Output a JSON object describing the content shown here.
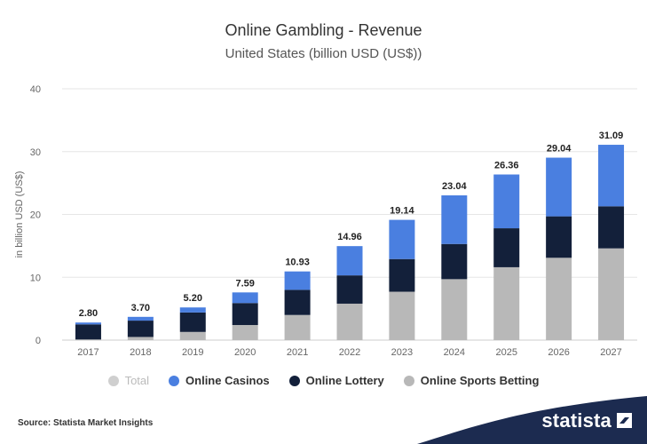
{
  "title": "Online Gambling - Revenue",
  "subtitle": "United States (billion USD (US$))",
  "source": "Source: Statista Market Insights",
  "brand": "statista",
  "colors": {
    "casinos": "#4a7fe0",
    "lottery": "#13203a",
    "sports": "#b8b8b8",
    "total": "#cfcfcf"
  },
  "legend": [
    {
      "label": "Total",
      "color": "#cfcfcf",
      "dim": true
    },
    {
      "label": "Online Casinos",
      "color": "#4a7fe0",
      "dim": false
    },
    {
      "label": "Online Lottery",
      "color": "#13203a",
      "dim": false
    },
    {
      "label": "Online Sports Betting",
      "color": "#b8b8b8",
      "dim": false
    }
  ],
  "chart_data": {
    "type": "bar",
    "stacked": true,
    "ylabel": "in billion USD (US$)",
    "ylim": [
      0,
      40
    ],
    "yticks": [
      0,
      10,
      20,
      30,
      40
    ],
    "grid": true,
    "legend_position": "bottom",
    "categories": [
      "2017",
      "2018",
      "2019",
      "2020",
      "2021",
      "2022",
      "2023",
      "2024",
      "2025",
      "2026",
      "2027"
    ],
    "totals": [
      "2.80",
      "3.70",
      "5.20",
      "7.59",
      "10.93",
      "14.96",
      "19.14",
      "23.04",
      "26.36",
      "29.04",
      "31.09"
    ],
    "series": [
      {
        "name": "Online Sports Betting",
        "color": "#b8b8b8",
        "values": [
          0.1,
          0.5,
          1.3,
          2.4,
          4.0,
          5.8,
          7.7,
          9.7,
          11.6,
          13.1,
          14.6
        ]
      },
      {
        "name": "Online Lottery",
        "color": "#13203a",
        "values": [
          2.4,
          2.6,
          3.1,
          3.5,
          4.0,
          4.5,
          5.2,
          5.6,
          6.2,
          6.6,
          6.7
        ]
      },
      {
        "name": "Online Casinos",
        "color": "#4a7fe0",
        "values": [
          0.3,
          0.6,
          0.8,
          1.69,
          2.93,
          4.66,
          6.24,
          7.74,
          8.56,
          9.34,
          9.79
        ]
      }
    ]
  }
}
